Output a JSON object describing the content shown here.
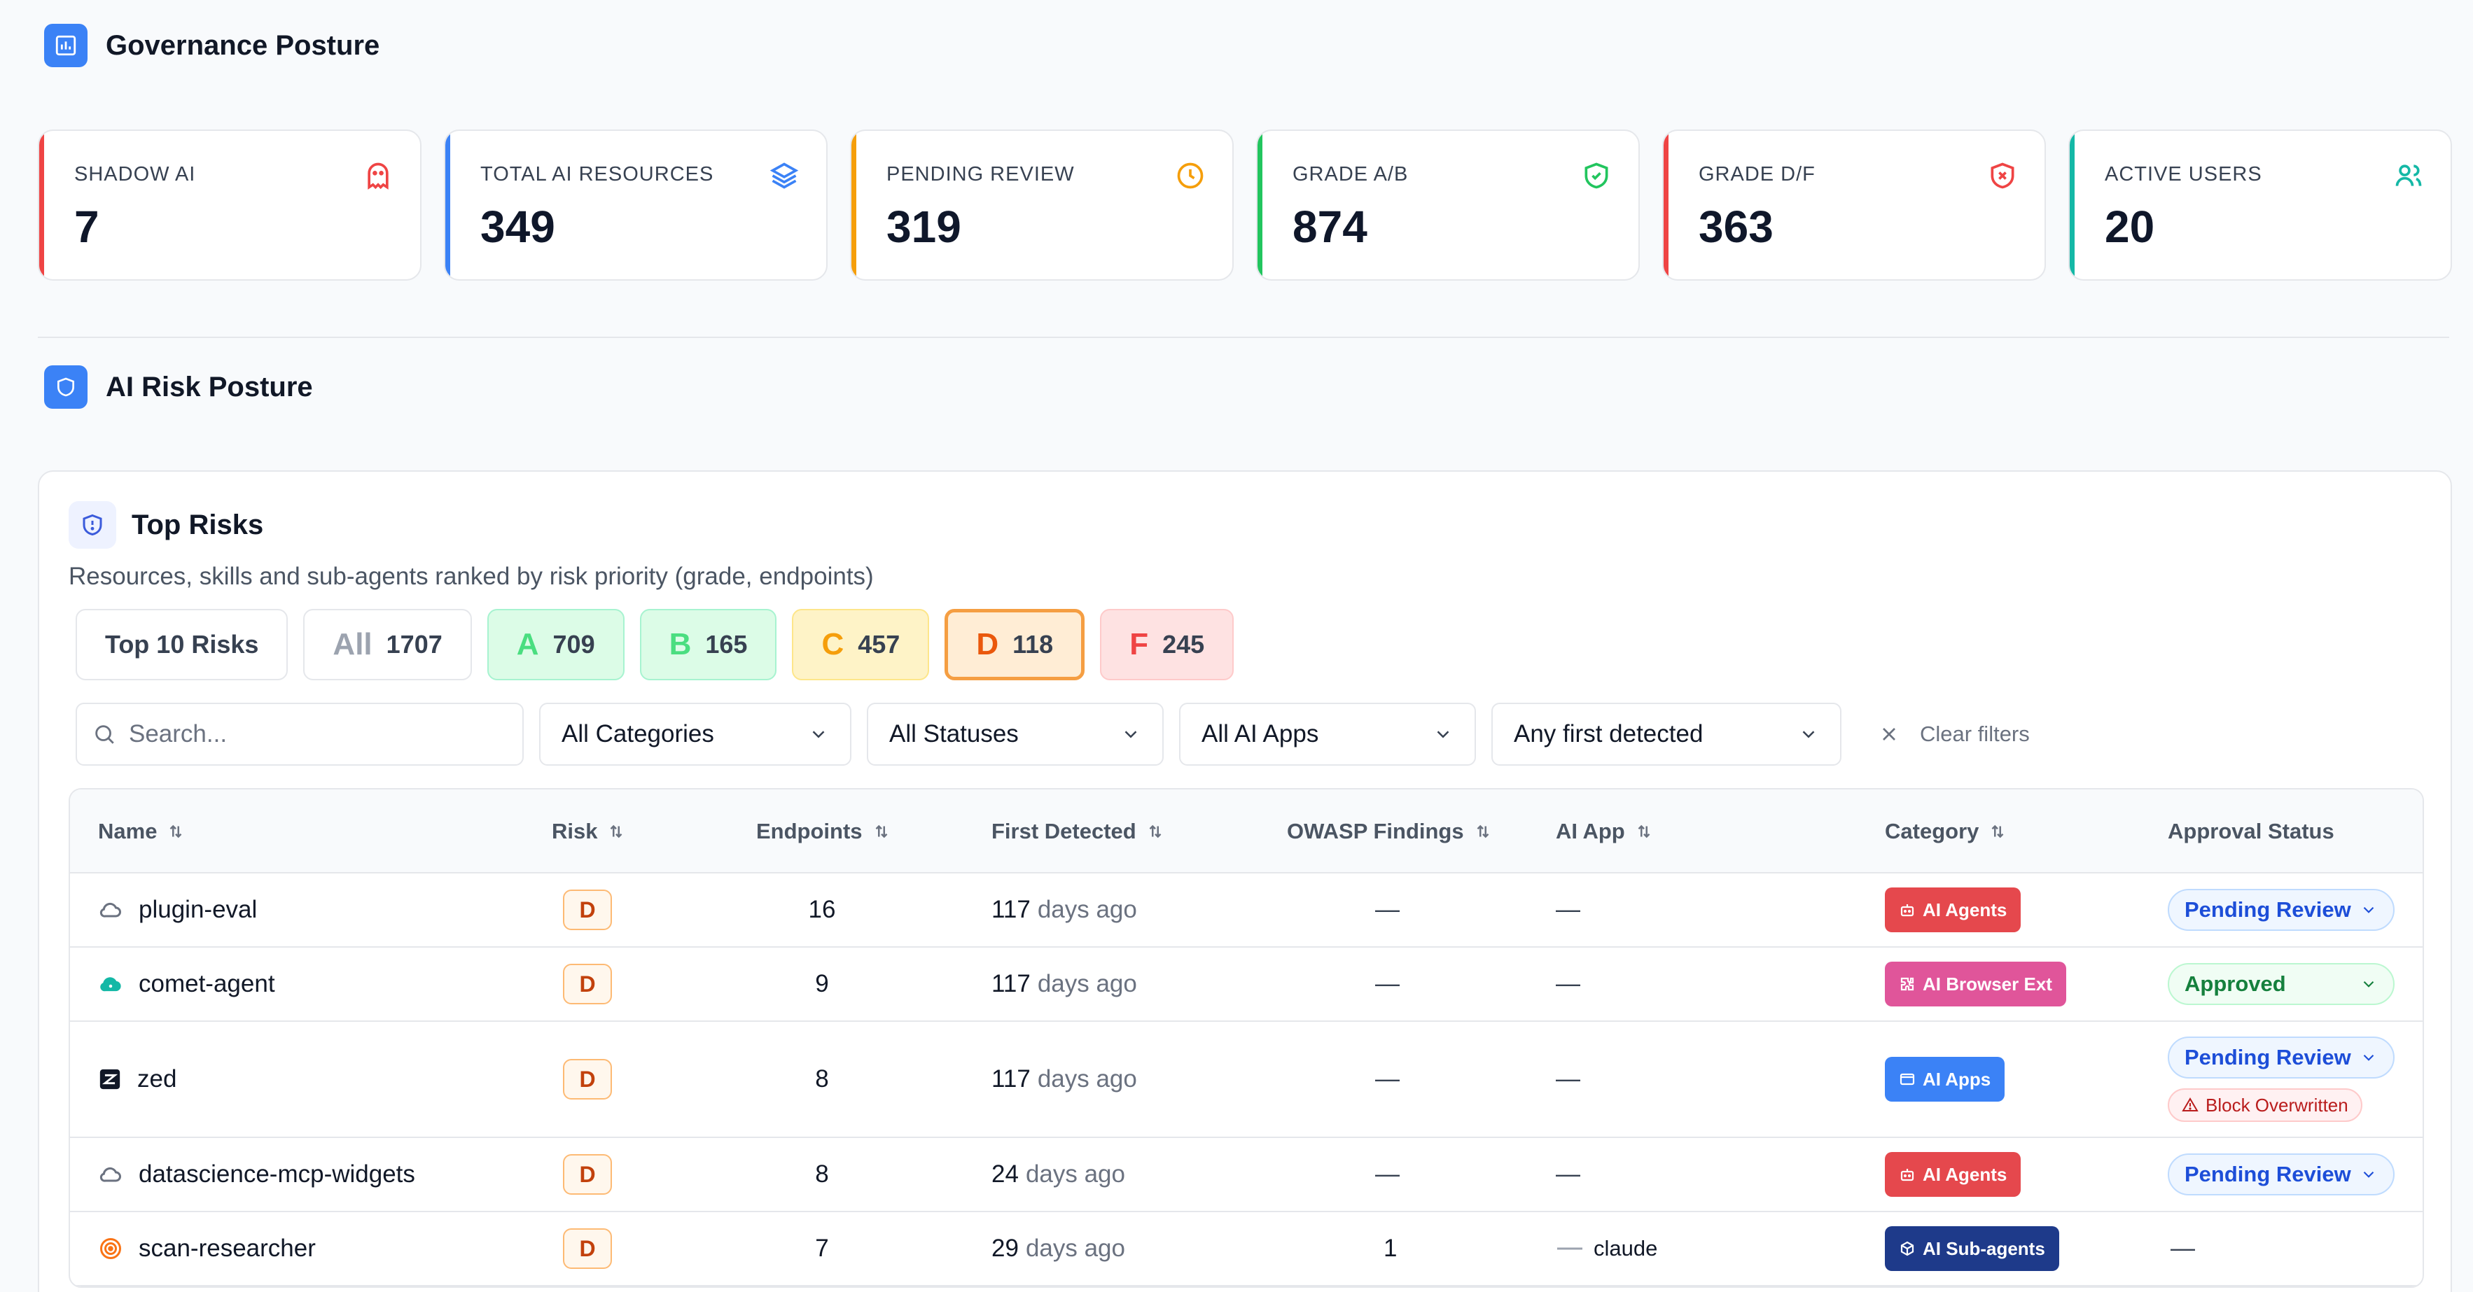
{
  "header": {
    "title": "Governance Posture"
  },
  "stats": [
    {
      "label": "SHADOW AI",
      "value": "7",
      "icon": "ghost-icon",
      "color": "#ef4444"
    },
    {
      "label": "TOTAL AI RESOURCES",
      "value": "349",
      "icon": "layers-icon",
      "color": "#3b82f6"
    },
    {
      "label": "PENDING REVIEW",
      "value": "319",
      "icon": "clock-icon",
      "color": "#f59e0b"
    },
    {
      "label": "GRADE A/B",
      "value": "874",
      "icon": "shield-check-icon",
      "color": "#22c55e"
    },
    {
      "label": "GRADE D/F",
      "value": "363",
      "icon": "shield-x-icon",
      "color": "#ef4444"
    },
    {
      "label": "ACTIVE USERS",
      "value": "20",
      "icon": "users-icon",
      "color": "#14b8a6"
    }
  ],
  "risk_section": {
    "title": "AI Risk Posture"
  },
  "card": {
    "title": "Top Risks",
    "subtitle": "Resources, skills and sub-agents ranked by risk priority (grade, endpoints)"
  },
  "chips": {
    "top10": "Top 10 Risks",
    "all": {
      "grade": "All",
      "count": "1707"
    },
    "a": {
      "grade": "A",
      "count": "709"
    },
    "b": {
      "grade": "B",
      "count": "165"
    },
    "c": {
      "grade": "C",
      "count": "457"
    },
    "d": {
      "grade": "D",
      "count": "118"
    },
    "f": {
      "grade": "F",
      "count": "245"
    }
  },
  "filters": {
    "search_placeholder": "Search...",
    "category": "All Categories",
    "status": "All Statuses",
    "apps": "All AI Apps",
    "detected": "Any first detected",
    "clear": "Clear filters"
  },
  "table": {
    "columns": {
      "name": "Name",
      "risk": "Risk",
      "endpoints": "Endpoints",
      "first_detected": "First Detected",
      "owasp": "OWASP Findings",
      "ai_app": "AI App",
      "category": "Category",
      "approval": "Approval Status"
    },
    "rows": [
      {
        "name": "plugin-eval",
        "icon": "cloud-icon",
        "risk": "D",
        "endpoints": "16",
        "days": "117",
        "days_suffix": "days ago",
        "owasp": "—",
        "app": "—",
        "category": "AI Agents",
        "cat_color": "#e5484d",
        "status": "Pending Review"
      },
      {
        "name": "comet-agent",
        "icon": "cloud-teal-icon",
        "risk": "D",
        "endpoints": "9",
        "days": "117",
        "days_suffix": "days ago",
        "owasp": "—",
        "app": "—",
        "category": "AI Browser Ext",
        "cat_color": "#e0559a",
        "status": "Approved"
      },
      {
        "name": "zed",
        "icon": "zed-icon",
        "risk": "D",
        "endpoints": "8",
        "days": "117",
        "days_suffix": "days ago",
        "owasp": "—",
        "app": "—",
        "category": "AI Apps",
        "cat_color": "#3b82f6",
        "status": "Pending Review",
        "warning": "Block Overwritten"
      },
      {
        "name": "datascience-mcp-widgets",
        "icon": "cloud-icon",
        "risk": "D",
        "endpoints": "8",
        "days": "24",
        "days_suffix": "days ago",
        "owasp": "—",
        "app": "—",
        "category": "AI Agents",
        "cat_color": "#e5484d",
        "status": "Pending Review"
      },
      {
        "name": "scan-researcher",
        "icon": "target-icon",
        "risk": "D",
        "endpoints": "7",
        "days": "29",
        "days_suffix": "days ago",
        "owasp": "1",
        "app": "claude",
        "category": "AI Sub-agents",
        "cat_color": "#1e3a8a",
        "status": "—"
      }
    ]
  }
}
